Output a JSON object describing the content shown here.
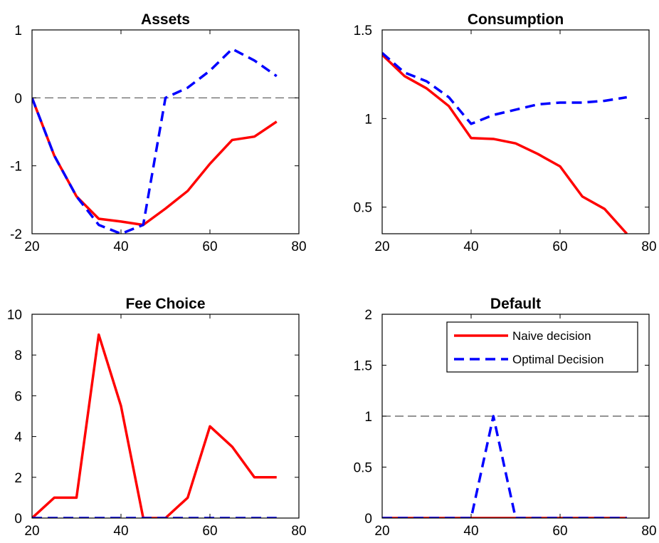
{
  "colors": {
    "naive": "#ff0000",
    "optimal": "#0000ff",
    "reference": "#555555"
  },
  "legend": {
    "placement": "top-right of Default panel",
    "entries": [
      {
        "label": "Naive decision",
        "series": "naive"
      },
      {
        "label": "Optimal Decision",
        "series": "optimal"
      }
    ]
  },
  "chart_data": [
    {
      "type": "line",
      "title": "Assets",
      "xlim": [
        20,
        80
      ],
      "ylim": [
        -2,
        1
      ],
      "xticks": [
        20,
        40,
        60,
        80
      ],
      "yticks": [
        -2,
        -1,
        0,
        1
      ],
      "xtick_labels": [
        "20",
        "40",
        "60",
        "80"
      ],
      "ytick_labels": [
        "-2",
        "-1",
        "0",
        "1"
      ],
      "reference_line": 0,
      "series": [
        {
          "name": "Naive decision",
          "key": "naive",
          "x": [
            20,
            25,
            30,
            35,
            40,
            45,
            50,
            55,
            60,
            65,
            70,
            75
          ],
          "y": [
            0,
            -0.85,
            -1.45,
            -1.78,
            -1.82,
            -1.87,
            -1.63,
            -1.37,
            -0.97,
            -0.62,
            -0.57,
            -0.35
          ]
        },
        {
          "name": "Optimal Decision",
          "key": "optimal",
          "x": [
            20,
            25,
            30,
            35,
            40,
            45,
            50,
            55,
            60,
            65,
            70,
            75
          ],
          "y": [
            0,
            -0.85,
            -1.45,
            -1.87,
            -2.0,
            -1.87,
            0.0,
            0.15,
            0.4,
            0.72,
            0.55,
            0.32
          ]
        }
      ]
    },
    {
      "type": "line",
      "title": "Consumption",
      "xlim": [
        20,
        80
      ],
      "ylim": [
        0.35,
        1.5
      ],
      "xticks": [
        20,
        40,
        60,
        80
      ],
      "yticks": [
        0.5,
        1,
        1.5
      ],
      "xtick_labels": [
        "20",
        "40",
        "60",
        "80"
      ],
      "ytick_labels": [
        "0.5",
        "1",
        "1.5"
      ],
      "series": [
        {
          "name": "Naive decision",
          "key": "naive",
          "x": [
            20,
            25,
            30,
            35,
            40,
            45,
            50,
            55,
            60,
            65,
            70,
            75
          ],
          "y": [
            1.36,
            1.24,
            1.17,
            1.07,
            0.89,
            0.885,
            0.86,
            0.8,
            0.73,
            0.56,
            0.49,
            0.35
          ]
        },
        {
          "name": "Optimal Decision",
          "key": "optimal",
          "x": [
            20,
            25,
            30,
            35,
            40,
            45,
            50,
            55,
            60,
            65,
            70,
            75
          ],
          "y": [
            1.37,
            1.26,
            1.21,
            1.12,
            0.97,
            1.02,
            1.05,
            1.08,
            1.09,
            1.09,
            1.1,
            1.12
          ]
        }
      ]
    },
    {
      "type": "line",
      "title": "Fee Choice",
      "xlim": [
        20,
        80
      ],
      "ylim": [
        0,
        10
      ],
      "xticks": [
        20,
        40,
        60,
        80
      ],
      "yticks": [
        0,
        2,
        4,
        6,
        8,
        10
      ],
      "xtick_labels": [
        "20",
        "40",
        "60",
        "80"
      ],
      "ytick_labels": [
        "0",
        "2",
        "4",
        "6",
        "8",
        "10"
      ],
      "series": [
        {
          "name": "Naive decision",
          "key": "naive",
          "x": [
            20,
            25,
            30,
            35,
            40,
            45,
            50,
            55,
            60,
            65,
            70,
            75
          ],
          "y": [
            0,
            1,
            1,
            9,
            5.5,
            0,
            0,
            1,
            4.5,
            3.5,
            2,
            2
          ]
        },
        {
          "name": "Optimal Decision",
          "key": "optimal",
          "x": [
            20,
            25,
            30,
            35,
            40,
            45,
            50,
            55,
            60,
            65,
            70,
            75
          ],
          "y": [
            0,
            0,
            0,
            0,
            0,
            0,
            0,
            0,
            0,
            0,
            0,
            0
          ]
        }
      ]
    },
    {
      "type": "line",
      "title": "Default",
      "xlim": [
        20,
        80
      ],
      "ylim": [
        0,
        2
      ],
      "xticks": [
        20,
        40,
        60,
        80
      ],
      "yticks": [
        0,
        0.5,
        1,
        1.5,
        2
      ],
      "xtick_labels": [
        "20",
        "40",
        "60",
        "80"
      ],
      "ytick_labels": [
        "0",
        "0.5",
        "1",
        "1.5",
        "2"
      ],
      "reference_line": 1,
      "series": [
        {
          "name": "Naive decision",
          "key": "naive",
          "x": [
            20,
            25,
            30,
            35,
            40,
            45,
            50,
            55,
            60,
            65,
            70,
            75
          ],
          "y": [
            0,
            0,
            0,
            0,
            0,
            0,
            0,
            0,
            0,
            0,
            0,
            0
          ]
        },
        {
          "name": "Optimal Decision",
          "key": "optimal",
          "x": [
            20,
            25,
            30,
            35,
            40,
            45,
            50,
            55,
            60,
            65,
            70,
            75
          ],
          "y": [
            0,
            0,
            0,
            0,
            0,
            1,
            0,
            0,
            0,
            0,
            0,
            0
          ]
        }
      ]
    }
  ]
}
